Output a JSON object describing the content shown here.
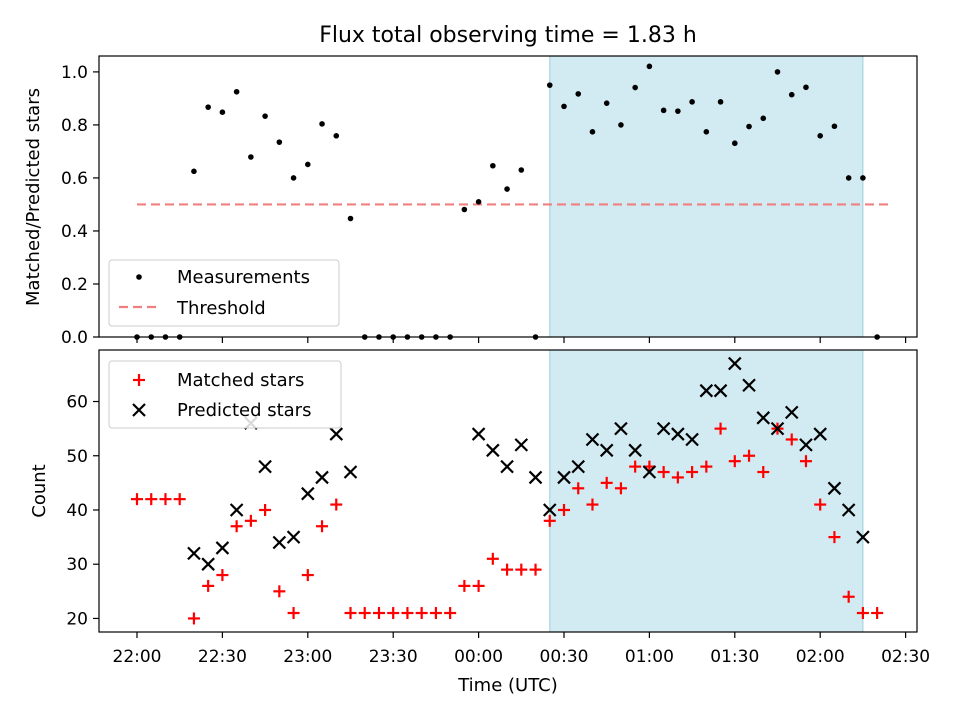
{
  "figure": {
    "title": "Flux total observing time = 1.83 h",
    "xlabel": "Time (UTC)"
  },
  "chart_data": [
    {
      "type": "scatter",
      "ylabel": "Matched/Predicted stars",
      "xlim": [
        "21:45",
        "02:36"
      ],
      "ylim": [
        0,
        1.06
      ],
      "yticks": [
        0.0,
        0.2,
        0.4,
        0.6,
        0.8,
        1.0
      ],
      "ytick_labels": [
        "0.0",
        "0.2",
        "0.4",
        "0.6",
        "0.8",
        "1.0"
      ],
      "legend": {
        "placement": "bottom-left"
      },
      "shaded_region": {
        "start": "00:25",
        "end": "02:15",
        "color": "#add8e6"
      },
      "threshold": {
        "name": "Threshold",
        "value": 0.5,
        "from": "22:00",
        "to": "02:25",
        "color": "#f08080",
        "style": "dashed"
      },
      "series": [
        {
          "name": "Measurements",
          "marker": "dot",
          "color": "#000000",
          "x": [
            "22:00",
            "22:05",
            "22:10",
            "22:15",
            "22:20",
            "22:25",
            "22:30",
            "22:35",
            "22:40",
            "22:45",
            "22:50",
            "22:55",
            "23:00",
            "23:05",
            "23:10",
            "23:15",
            "23:20",
            "23:25",
            "23:30",
            "23:35",
            "23:40",
            "23:45",
            "23:50",
            "23:55",
            "00:00",
            "00:05",
            "00:10",
            "00:15",
            "00:20",
            "00:25",
            "00:30",
            "00:35",
            "00:40",
            "00:45",
            "00:50",
            "00:55",
            "01:00",
            "01:05",
            "01:10",
            "01:15",
            "01:20",
            "01:25",
            "01:30",
            "01:35",
            "01:40",
            "01:45",
            "01:50",
            "01:55",
            "02:00",
            "02:05",
            "02:10",
            "02:15",
            "02:20"
          ],
          "y": [
            0,
            0,
            0,
            0,
            0.625,
            0.867,
            0.848,
            0.925,
            0.679,
            0.833,
            0.735,
            0.6,
            0.651,
            0.804,
            0.759,
            0.447,
            0,
            0,
            0,
            0,
            0,
            0,
            0,
            0.481,
            0.51,
            0.646,
            0.558,
            0.63,
            0,
            0.95,
            0.87,
            0.917,
            0.774,
            0.882,
            0.8,
            0.941,
            1.021,
            0.855,
            0.852,
            0.887,
            0.774,
            0.887,
            0.731,
            0.794,
            0.825,
            1.0,
            0.914,
            0.942,
            0.759,
            0.795,
            0.6,
            0.6,
            0
          ]
        }
      ]
    },
    {
      "type": "scatter",
      "ylabel": "Count",
      "xlabel": "Time (UTC)",
      "xlim": [
        "21:45",
        "02:36"
      ],
      "ylim": [
        17.5,
        69.5
      ],
      "yticks": [
        20,
        30,
        40,
        50,
        60
      ],
      "ytick_labels": [
        "20",
        "30",
        "40",
        "50",
        "60"
      ],
      "xticks": [
        "22:00",
        "22:30",
        "23:00",
        "23:30",
        "00:00",
        "00:30",
        "01:00",
        "01:30",
        "02:00",
        "02:30"
      ],
      "legend": {
        "placement": "top-left"
      },
      "shaded_region": {
        "start": "00:25",
        "end": "02:15",
        "color": "#add8e6"
      },
      "series": [
        {
          "name": "Matched stars",
          "marker": "plus",
          "color": "#ff0000",
          "x": [
            "22:00",
            "22:05",
            "22:10",
            "22:15",
            "22:20",
            "22:25",
            "22:30",
            "22:35",
            "22:40",
            "22:45",
            "22:50",
            "22:55",
            "23:00",
            "23:05",
            "23:10",
            "23:15",
            "23:20",
            "23:25",
            "23:30",
            "23:35",
            "23:40",
            "23:45",
            "23:50",
            "23:55",
            "00:00",
            "00:05",
            "00:10",
            "00:15",
            "00:20",
            "00:25",
            "00:30",
            "00:35",
            "00:40",
            "00:45",
            "00:50",
            "00:55",
            "01:00",
            "01:05",
            "01:10",
            "01:15",
            "01:20",
            "01:25",
            "01:30",
            "01:35",
            "01:40",
            "01:45",
            "01:50",
            "01:55",
            "02:00",
            "02:05",
            "02:10",
            "02:15",
            "02:20"
          ],
          "y": [
            42,
            42,
            42,
            42,
            20,
            26,
            28,
            37,
            38,
            40,
            25,
            21,
            28,
            37,
            41,
            21,
            21,
            21,
            21,
            21,
            21,
            21,
            21,
            26,
            26,
            31,
            29,
            29,
            29,
            38,
            40,
            44,
            41,
            45,
            44,
            48,
            48,
            47,
            46,
            47,
            48,
            55,
            49,
            50,
            47,
            55,
            53,
            49,
            41,
            35,
            24,
            21,
            21
          ]
        },
        {
          "name": "Predicted stars",
          "marker": "x",
          "color": "#000000",
          "x": [
            "22:20",
            "22:25",
            "22:30",
            "22:35",
            "22:40",
            "22:45",
            "22:50",
            "22:55",
            "23:00",
            "23:05",
            "23:10",
            "23:15",
            "00:00",
            "00:05",
            "00:10",
            "00:15",
            "00:20",
            "00:25",
            "00:30",
            "00:35",
            "00:40",
            "00:45",
            "00:50",
            "00:55",
            "01:00",
            "01:05",
            "01:10",
            "01:15",
            "01:20",
            "01:25",
            "01:30",
            "01:35",
            "01:40",
            "01:45",
            "01:50",
            "01:55",
            "02:00",
            "02:05",
            "02:10",
            "02:15"
          ],
          "y": [
            32,
            30,
            33,
            40,
            56,
            48,
            34,
            35,
            43,
            46,
            54,
            47,
            54,
            51,
            48,
            52,
            46,
            40,
            46,
            48,
            53,
            51,
            55,
            51,
            47,
            55,
            54,
            53,
            62,
            62,
            67,
            63,
            57,
            55,
            58,
            52,
            54,
            44,
            40,
            35
          ]
        }
      ]
    }
  ]
}
